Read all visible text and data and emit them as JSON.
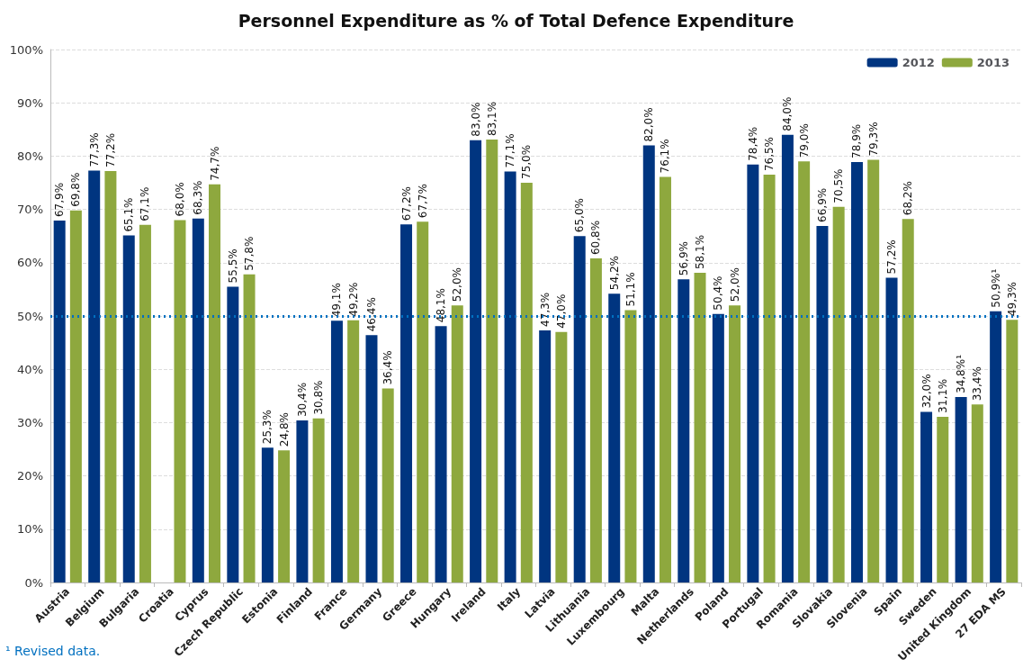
{
  "chart_data": {
    "type": "bar",
    "title": "Personnel Expenditure as % of Total Defence Expenditure",
    "categories": [
      "Austria",
      "Belgium",
      "Bulgaria",
      "Croatia",
      "Cyprus",
      "Czech Republic",
      "Estonia",
      "Finland",
      "France",
      "Germany",
      "Greece",
      "Hungary",
      "Ireland",
      "Italy",
      "Latvia",
      "Lithuania",
      "Luxembourg",
      "Malta",
      "Netherlands",
      "Poland",
      "Portugal",
      "Romania",
      "Slovakia",
      "Slovenia",
      "Spain",
      "Sweden",
      "United Kingdom",
      "27 EDA MS"
    ],
    "series": [
      {
        "name": "2012",
        "color": "#003580",
        "values": [
          67.9,
          77.3,
          65.1,
          null,
          68.3,
          55.5,
          25.3,
          30.4,
          49.1,
          46.4,
          67.2,
          48.1,
          83.0,
          77.1,
          47.3,
          65.0,
          54.2,
          82.0,
          56.9,
          50.4,
          78.4,
          84.0,
          66.9,
          78.9,
          57.2,
          32.0,
          34.8,
          50.9
        ],
        "value_labels": [
          "67,9%",
          "77,3%",
          "65,1%",
          null,
          "68,3%",
          "55,5%",
          "25,3%",
          "30,4%",
          "49,1%",
          "46,4%",
          "67,2%",
          "48,1%",
          "83,0%",
          "77,1%",
          "47,3%",
          "65,0%",
          "54,2%",
          "82,0%",
          "56,9%",
          "50,4%",
          "78,4%",
          "84,0%",
          "66,9%",
          "78,9%",
          "57,2%",
          "32,0%",
          "34,8%¹",
          "50,9%¹"
        ]
      },
      {
        "name": "2013",
        "color": "#8ea83e",
        "values": [
          69.8,
          77.2,
          67.1,
          68.0,
          74.7,
          57.8,
          24.8,
          30.8,
          49.2,
          36.4,
          67.7,
          52.0,
          83.1,
          75.0,
          47.0,
          60.8,
          51.1,
          76.1,
          58.1,
          52.0,
          76.5,
          79.0,
          70.5,
          79.3,
          68.2,
          31.1,
          33.4,
          49.3
        ],
        "value_labels": [
          "69,8%",
          "77,2%",
          "67,1%",
          "68,0%",
          "74,7%",
          "57,8%",
          "24,8%",
          "30,8%",
          "49,2%",
          "36,4%",
          "67,7%",
          "52,0%",
          "83,1%",
          "75,0%",
          "47,0%",
          "60,8%",
          "51,1%",
          "76,1%",
          "58,1%",
          "52,0%",
          "76,5%",
          "79,0%",
          "70,5%",
          "79,3%",
          "68,2%",
          "31,1%",
          "33,4%",
          "49,3%"
        ]
      }
    ],
    "ylim": [
      0,
      100
    ],
    "yticks": [
      {
        "value": 0,
        "label": "0%"
      },
      {
        "value": 10,
        "label": "10%"
      },
      {
        "value": 20,
        "label": "20%"
      },
      {
        "value": 30,
        "label": "30%"
      },
      {
        "value": 40,
        "label": "40%"
      },
      {
        "value": 50,
        "label": "50%"
      },
      {
        "value": 60,
        "label": "60%"
      },
      {
        "value": 70,
        "label": "70%"
      },
      {
        "value": 80,
        "label": "80%"
      },
      {
        "value": 90,
        "label": "90%"
      },
      {
        "value": 100,
        "label": "100%"
      }
    ],
    "grid": "y",
    "legend": "top right",
    "ref_lines": [
      {
        "axis": "y",
        "value": 50,
        "color": "#0070c0",
        "line_style": "dotted"
      }
    ],
    "annotations": [
      "¹ Revised data."
    ]
  }
}
